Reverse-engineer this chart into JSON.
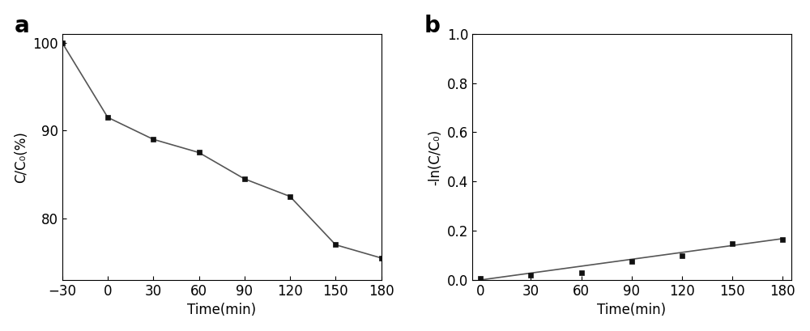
{
  "plot_a": {
    "x": [
      -30,
      0,
      30,
      60,
      90,
      120,
      150,
      180
    ],
    "y": [
      100,
      91.5,
      89.0,
      87.5,
      84.5,
      82.5,
      77.0,
      75.5
    ],
    "xlabel": "Time(min)",
    "ylabel": "C/C₀(%)",
    "label": "a",
    "xlim": [
      -30,
      180
    ],
    "ylim": [
      73,
      101
    ],
    "xticks": [
      -30,
      0,
      30,
      60,
      90,
      120,
      150,
      180
    ],
    "yticks": [
      80,
      90,
      100
    ]
  },
  "plot_b": {
    "x": [
      0,
      30,
      60,
      90,
      120,
      150,
      180
    ],
    "y_data": [
      0.005,
      0.018,
      0.03,
      0.074,
      0.098,
      0.148,
      0.163
    ],
    "fit_x": [
      0,
      180
    ],
    "fit_y": [
      0.0,
      0.168
    ],
    "xlabel": "Time(min)",
    "ylabel": "-ln(C/C₀)",
    "label": "b",
    "xlim": [
      -5,
      185
    ],
    "ylim": [
      0.0,
      1.0
    ],
    "xticks": [
      0,
      30,
      60,
      90,
      120,
      150,
      180
    ],
    "yticks": [
      0.0,
      0.2,
      0.4,
      0.6,
      0.8,
      1.0
    ]
  },
  "line_color": "#555555",
  "marker": "s",
  "marker_color": "#111111",
  "marker_size": 5,
  "linewidth": 1.2,
  "font_size": 12,
  "label_font_size": 20,
  "background_color": "#ffffff"
}
